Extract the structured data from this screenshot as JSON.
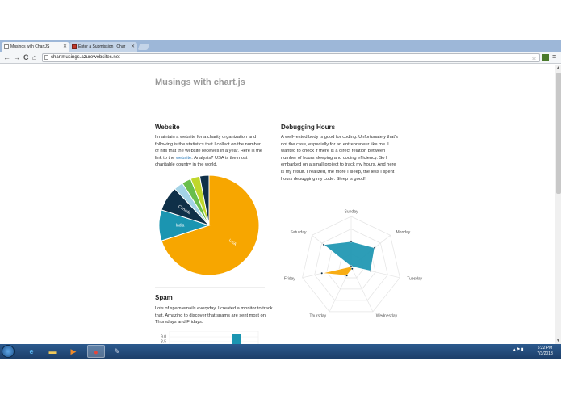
{
  "browser": {
    "tabs": [
      {
        "label": "Musings with ChartJS",
        "active": true
      },
      {
        "label": "Enter a Submission | Char",
        "active": false
      }
    ],
    "nav": {
      "back_icon": "←",
      "forward_icon": "→",
      "reload_icon": "C",
      "home_icon": "⌂"
    },
    "url": "chartmusings.azurewebsites.net"
  },
  "page": {
    "title": "Musings with chart.js",
    "website": {
      "heading": "Website",
      "text_before_link": "I maintain a website for a charity organization and following is the statistics that I collect on the number of hits that the website receives in a year. Here is the link to the ",
      "link_text": "website",
      "text_after_link": ". Analysis? USA is the most charitable country in the world."
    },
    "debugging": {
      "heading": "Debugging Hours",
      "text": "A well-rested body is good for coding. Unfortunately that's not the case, especially for an entrepreneur like me. I wanted to check if there is a direct relation between number of hours sleeping and coding efficiency. So I embarked on a small project to track my hours. And here is my result. I realized, the more I sleep, the less I spent hours debugging my code. Sleep is good!"
    },
    "spam": {
      "heading": "Spam",
      "text": "Lots of spam emails everyday. I created a monitor to track that. Amazing to discover that spams are sent most on Thursdays and Fridays."
    }
  },
  "chart_data": [
    {
      "type": "pie",
      "categories": [
        "USA",
        "India",
        "Canada",
        "",
        "",
        "",
        ""
      ],
      "values": [
        70,
        10,
        8,
        3,
        3,
        3,
        3
      ],
      "colors": [
        "#F7A600",
        "#1B95B1",
        "#0F3048",
        "#A4D3E6",
        "#69BE4B",
        "#C0D72B",
        "#0F3048"
      ],
      "title": ""
    },
    {
      "type": "radar",
      "categories": [
        "Sunday",
        "Monday",
        "Tuesday",
        "Wednesday",
        "Thursday",
        "Friday",
        "Saturday"
      ],
      "series": [
        {
          "values": [
            5,
            6,
            4,
            0,
            0,
            0,
            7
          ],
          "color": "#1B95B1"
        },
        {
          "values": [
            0,
            0,
            0,
            0.5,
            2,
            6,
            0
          ],
          "color": "#F7A600"
        }
      ],
      "ylim": [
        0,
        10
      ]
    },
    {
      "type": "bar",
      "y_ticks_visible": [
        "9.0",
        "8.5"
      ],
      "series_color": "#1B95B1"
    }
  ],
  "taskbar": {
    "clock_time": "5:22 PM",
    "clock_date": "7/3/2013",
    "apps": [
      "ie",
      "explorer",
      "media-player",
      "chrome",
      "paint"
    ]
  }
}
